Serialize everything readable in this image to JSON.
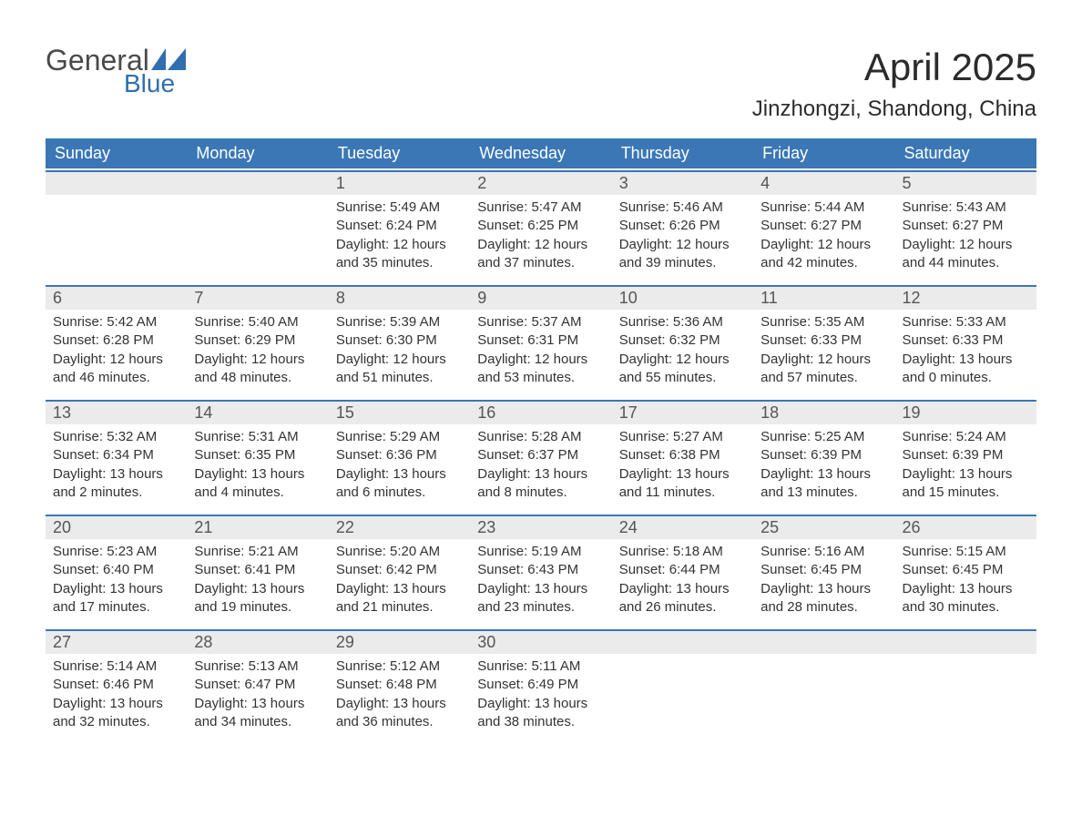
{
  "logo": {
    "word1": "General",
    "word2": "Blue"
  },
  "title": "April 2025",
  "location": "Jinzhongzi, Shandong, China",
  "colors": {
    "header_bg": "#3b77b5",
    "header_text": "#ffffff",
    "daynum_bg": "#ebebeb",
    "week_border": "#3b77b5",
    "body_text": "#333333",
    "logo_gray": "#4a4a4a",
    "logo_blue": "#2f6fb0"
  },
  "weekdays": [
    "Sunday",
    "Monday",
    "Tuesday",
    "Wednesday",
    "Thursday",
    "Friday",
    "Saturday"
  ],
  "weeks": [
    [
      {
        "n": "",
        "sunrise": "",
        "sunset": "",
        "daylight": ""
      },
      {
        "n": "",
        "sunrise": "",
        "sunset": "",
        "daylight": ""
      },
      {
        "n": "1",
        "sunrise": "Sunrise: 5:49 AM",
        "sunset": "Sunset: 6:24 PM",
        "daylight": "Daylight: 12 hours and 35 minutes."
      },
      {
        "n": "2",
        "sunrise": "Sunrise: 5:47 AM",
        "sunset": "Sunset: 6:25 PM",
        "daylight": "Daylight: 12 hours and 37 minutes."
      },
      {
        "n": "3",
        "sunrise": "Sunrise: 5:46 AM",
        "sunset": "Sunset: 6:26 PM",
        "daylight": "Daylight: 12 hours and 39 minutes."
      },
      {
        "n": "4",
        "sunrise": "Sunrise: 5:44 AM",
        "sunset": "Sunset: 6:27 PM",
        "daylight": "Daylight: 12 hours and 42 minutes."
      },
      {
        "n": "5",
        "sunrise": "Sunrise: 5:43 AM",
        "sunset": "Sunset: 6:27 PM",
        "daylight": "Daylight: 12 hours and 44 minutes."
      }
    ],
    [
      {
        "n": "6",
        "sunrise": "Sunrise: 5:42 AM",
        "sunset": "Sunset: 6:28 PM",
        "daylight": "Daylight: 12 hours and 46 minutes."
      },
      {
        "n": "7",
        "sunrise": "Sunrise: 5:40 AM",
        "sunset": "Sunset: 6:29 PM",
        "daylight": "Daylight: 12 hours and 48 minutes."
      },
      {
        "n": "8",
        "sunrise": "Sunrise: 5:39 AM",
        "sunset": "Sunset: 6:30 PM",
        "daylight": "Daylight: 12 hours and 51 minutes."
      },
      {
        "n": "9",
        "sunrise": "Sunrise: 5:37 AM",
        "sunset": "Sunset: 6:31 PM",
        "daylight": "Daylight: 12 hours and 53 minutes."
      },
      {
        "n": "10",
        "sunrise": "Sunrise: 5:36 AM",
        "sunset": "Sunset: 6:32 PM",
        "daylight": "Daylight: 12 hours and 55 minutes."
      },
      {
        "n": "11",
        "sunrise": "Sunrise: 5:35 AM",
        "sunset": "Sunset: 6:33 PM",
        "daylight": "Daylight: 12 hours and 57 minutes."
      },
      {
        "n": "12",
        "sunrise": "Sunrise: 5:33 AM",
        "sunset": "Sunset: 6:33 PM",
        "daylight": "Daylight: 13 hours and 0 minutes."
      }
    ],
    [
      {
        "n": "13",
        "sunrise": "Sunrise: 5:32 AM",
        "sunset": "Sunset: 6:34 PM",
        "daylight": "Daylight: 13 hours and 2 minutes."
      },
      {
        "n": "14",
        "sunrise": "Sunrise: 5:31 AM",
        "sunset": "Sunset: 6:35 PM",
        "daylight": "Daylight: 13 hours and 4 minutes."
      },
      {
        "n": "15",
        "sunrise": "Sunrise: 5:29 AM",
        "sunset": "Sunset: 6:36 PM",
        "daylight": "Daylight: 13 hours and 6 minutes."
      },
      {
        "n": "16",
        "sunrise": "Sunrise: 5:28 AM",
        "sunset": "Sunset: 6:37 PM",
        "daylight": "Daylight: 13 hours and 8 minutes."
      },
      {
        "n": "17",
        "sunrise": "Sunrise: 5:27 AM",
        "sunset": "Sunset: 6:38 PM",
        "daylight": "Daylight: 13 hours and 11 minutes."
      },
      {
        "n": "18",
        "sunrise": "Sunrise: 5:25 AM",
        "sunset": "Sunset: 6:39 PM",
        "daylight": "Daylight: 13 hours and 13 minutes."
      },
      {
        "n": "19",
        "sunrise": "Sunrise: 5:24 AM",
        "sunset": "Sunset: 6:39 PM",
        "daylight": "Daylight: 13 hours and 15 minutes."
      }
    ],
    [
      {
        "n": "20",
        "sunrise": "Sunrise: 5:23 AM",
        "sunset": "Sunset: 6:40 PM",
        "daylight": "Daylight: 13 hours and 17 minutes."
      },
      {
        "n": "21",
        "sunrise": "Sunrise: 5:21 AM",
        "sunset": "Sunset: 6:41 PM",
        "daylight": "Daylight: 13 hours and 19 minutes."
      },
      {
        "n": "22",
        "sunrise": "Sunrise: 5:20 AM",
        "sunset": "Sunset: 6:42 PM",
        "daylight": "Daylight: 13 hours and 21 minutes."
      },
      {
        "n": "23",
        "sunrise": "Sunrise: 5:19 AM",
        "sunset": "Sunset: 6:43 PM",
        "daylight": "Daylight: 13 hours and 23 minutes."
      },
      {
        "n": "24",
        "sunrise": "Sunrise: 5:18 AM",
        "sunset": "Sunset: 6:44 PM",
        "daylight": "Daylight: 13 hours and 26 minutes."
      },
      {
        "n": "25",
        "sunrise": "Sunrise: 5:16 AM",
        "sunset": "Sunset: 6:45 PM",
        "daylight": "Daylight: 13 hours and 28 minutes."
      },
      {
        "n": "26",
        "sunrise": "Sunrise: 5:15 AM",
        "sunset": "Sunset: 6:45 PM",
        "daylight": "Daylight: 13 hours and 30 minutes."
      }
    ],
    [
      {
        "n": "27",
        "sunrise": "Sunrise: 5:14 AM",
        "sunset": "Sunset: 6:46 PM",
        "daylight": "Daylight: 13 hours and 32 minutes."
      },
      {
        "n": "28",
        "sunrise": "Sunrise: 5:13 AM",
        "sunset": "Sunset: 6:47 PM",
        "daylight": "Daylight: 13 hours and 34 minutes."
      },
      {
        "n": "29",
        "sunrise": "Sunrise: 5:12 AM",
        "sunset": "Sunset: 6:48 PM",
        "daylight": "Daylight: 13 hours and 36 minutes."
      },
      {
        "n": "30",
        "sunrise": "Sunrise: 5:11 AM",
        "sunset": "Sunset: 6:49 PM",
        "daylight": "Daylight: 13 hours and 38 minutes."
      },
      {
        "n": "",
        "sunrise": "",
        "sunset": "",
        "daylight": ""
      },
      {
        "n": "",
        "sunrise": "",
        "sunset": "",
        "daylight": ""
      },
      {
        "n": "",
        "sunrise": "",
        "sunset": "",
        "daylight": ""
      }
    ]
  ]
}
